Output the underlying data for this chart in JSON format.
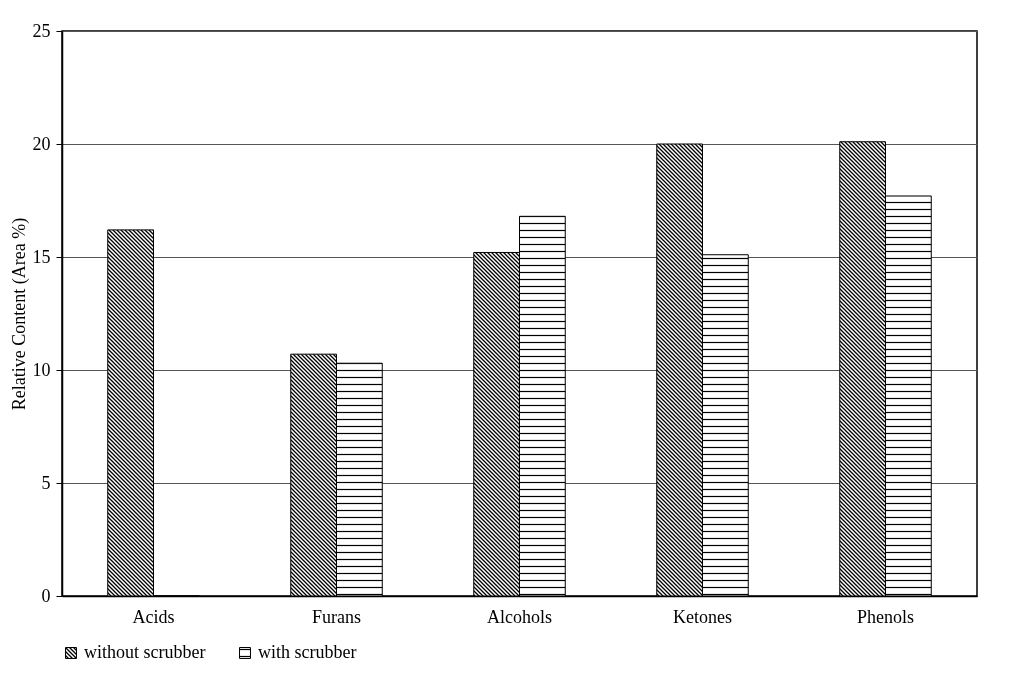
{
  "chart_data": {
    "type": "bar",
    "ylabel": "Relative Content (Area %)",
    "categories": [
      "Acids",
      "Furans",
      "Alcohols",
      "Ketones",
      "Phenols"
    ],
    "series": [
      {
        "name": "without scrubber",
        "color": "#000000",
        "values": [
          16.2,
          10.7,
          15.2,
          20.0,
          20.1
        ]
      },
      {
        "name": "with scrubber",
        "color": "#000000",
        "values": [
          0,
          10.3,
          16.8,
          15.1,
          17.7
        ]
      }
    ],
    "ylim": [
      0,
      25
    ],
    "yticks": [
      0,
      5,
      10,
      15,
      20,
      25
    ],
    "grid": "y",
    "legend": "bottom"
  }
}
